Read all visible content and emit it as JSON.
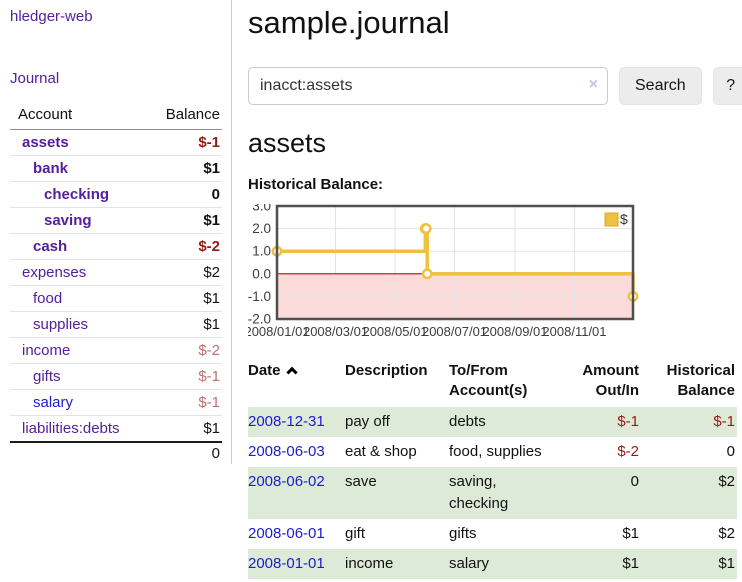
{
  "colors": {
    "purple": "#54209b",
    "blue": "#1d1ccc",
    "neg-strong": "#951a1a",
    "neg-soft": "#c26f6e",
    "row-green": "#ddead8",
    "btn-bg": "#ececec",
    "gold": "#edc240",
    "gold-border": "#d9a921",
    "pink": "#fbdada",
    "zero-line": "#a51212",
    "grid": "#e3e3e3",
    "chart-border": "#4f4f4f"
  },
  "app": {
    "brand": "hledger-web"
  },
  "sidebar": {
    "journal_label": "Journal",
    "accounts_table": {
      "headers": [
        "Account",
        "Balance"
      ],
      "rows": [
        {
          "account": "assets",
          "balance": "$-1",
          "indent": 0,
          "bold": true
        },
        {
          "account": "bank",
          "balance": "$1",
          "indent": 1,
          "bold": true
        },
        {
          "account": "checking",
          "balance": "0",
          "indent": 2,
          "bold": true
        },
        {
          "account": "saving",
          "balance": "$1",
          "indent": 2,
          "bold": true
        },
        {
          "account": "cash",
          "balance": "$-2",
          "indent": 1,
          "bold": true
        },
        {
          "account": "expenses",
          "balance": "$2",
          "indent": 0,
          "bold": false
        },
        {
          "account": "food",
          "balance": "$1",
          "indent": 1,
          "bold": false
        },
        {
          "account": "supplies",
          "balance": "$1",
          "indent": 1,
          "bold": false
        },
        {
          "account": "income",
          "balance": "$-2",
          "indent": 0,
          "bold": false
        },
        {
          "account": "gifts",
          "balance": "$-1",
          "indent": 1,
          "bold": false
        },
        {
          "account": "salary",
          "balance": "$-1",
          "indent": 1,
          "bold": false,
          "unvisited": true
        },
        {
          "account": "liabilities:debts",
          "balance": "$1",
          "indent": 0,
          "bold": false
        }
      ],
      "total": "0"
    }
  },
  "main": {
    "title": "sample.journal",
    "search": {
      "value": "inacct:assets",
      "clear_icon": "×",
      "button_label": "Search",
      "help_label": "?"
    },
    "account_heading": "assets",
    "chart_label": "Historical Balance:"
  },
  "chart_data": {
    "type": "line",
    "step": true,
    "title": "Historical Balance",
    "series": [
      {
        "name": "$",
        "points": [
          [
            "2008-01-01",
            1
          ],
          [
            "2008-06-01",
            2
          ],
          [
            "2008-06-02",
            2
          ],
          [
            "2008-06-03",
            0
          ],
          [
            "2008-12-31",
            -1
          ]
        ]
      }
    ],
    "x_range": [
      "2008-01-01",
      "2008-12-31"
    ],
    "x_tick_labels": [
      "2008/01/01",
      "2008/03/01",
      "2008/05/01",
      "2008/07/01",
      "2008/09/01",
      "2008/11/01"
    ],
    "y_ticks": [
      3.0,
      2.0,
      1.0,
      0.0,
      -1.0,
      -2.0
    ],
    "ylim": [
      -2,
      3
    ],
    "grid": true,
    "legend_position": "top-right",
    "negative_region_shaded": true
  },
  "transactions": {
    "headers": [
      {
        "label": "Date",
        "align": "left",
        "sorted": "asc"
      },
      {
        "label": "Description",
        "align": "left"
      },
      {
        "label": "To/From Account(s)",
        "align": "left"
      },
      {
        "label": "Amount Out/In",
        "align": "right"
      },
      {
        "label": "Historical Balance",
        "align": "right"
      }
    ],
    "rows": [
      {
        "date": "2008-12-31",
        "description": "pay off",
        "accounts": "debts",
        "amount": "$-1",
        "balance": "$-1"
      },
      {
        "date": "2008-06-03",
        "description": "eat & shop",
        "accounts": "food, supplies",
        "amount": "$-2",
        "balance": "0"
      },
      {
        "date": "2008-06-02",
        "description": "save",
        "accounts": "saving, checking",
        "amount": "0",
        "balance": "$2"
      },
      {
        "date": "2008-06-01",
        "description": "gift",
        "accounts": "gifts",
        "amount": "$1",
        "balance": "$2"
      },
      {
        "date": "2008-01-01",
        "description": "income",
        "accounts": "salary",
        "amount": "$1",
        "balance": "$1"
      }
    ]
  }
}
